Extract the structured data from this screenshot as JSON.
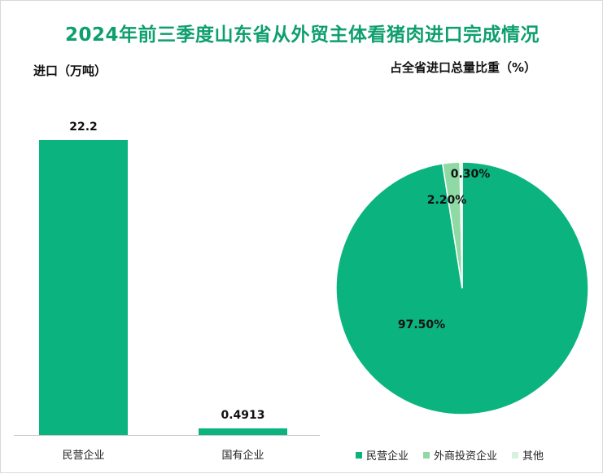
{
  "title": "2024年前三季度山东省从外贸主体看猪肉进口完成情况",
  "colors": {
    "primary": "#0bb47e",
    "title": "#0e9f6e",
    "secondary": "#8ed9a4",
    "other": "#d7f0df"
  },
  "chart_data": [
    {
      "type": "bar",
      "title": "进口（万吨）",
      "categories": [
        "民营企业",
        "国有企业"
      ],
      "values": [
        22.2,
        0.4913
      ],
      "data_labels": [
        "22.2",
        "0.4913"
      ],
      "ylim": [
        0,
        22.2
      ],
      "grid": false
    },
    {
      "type": "pie",
      "title": "占全省进口总量比重（%）",
      "labels": [
        "民营企业",
        "外商投资企业",
        "其他"
      ],
      "values": [
        97.5,
        2.2,
        0.3
      ],
      "data_labels": [
        "97.50%",
        "2.20%",
        "0.30%"
      ],
      "legend": "bottom"
    }
  ]
}
